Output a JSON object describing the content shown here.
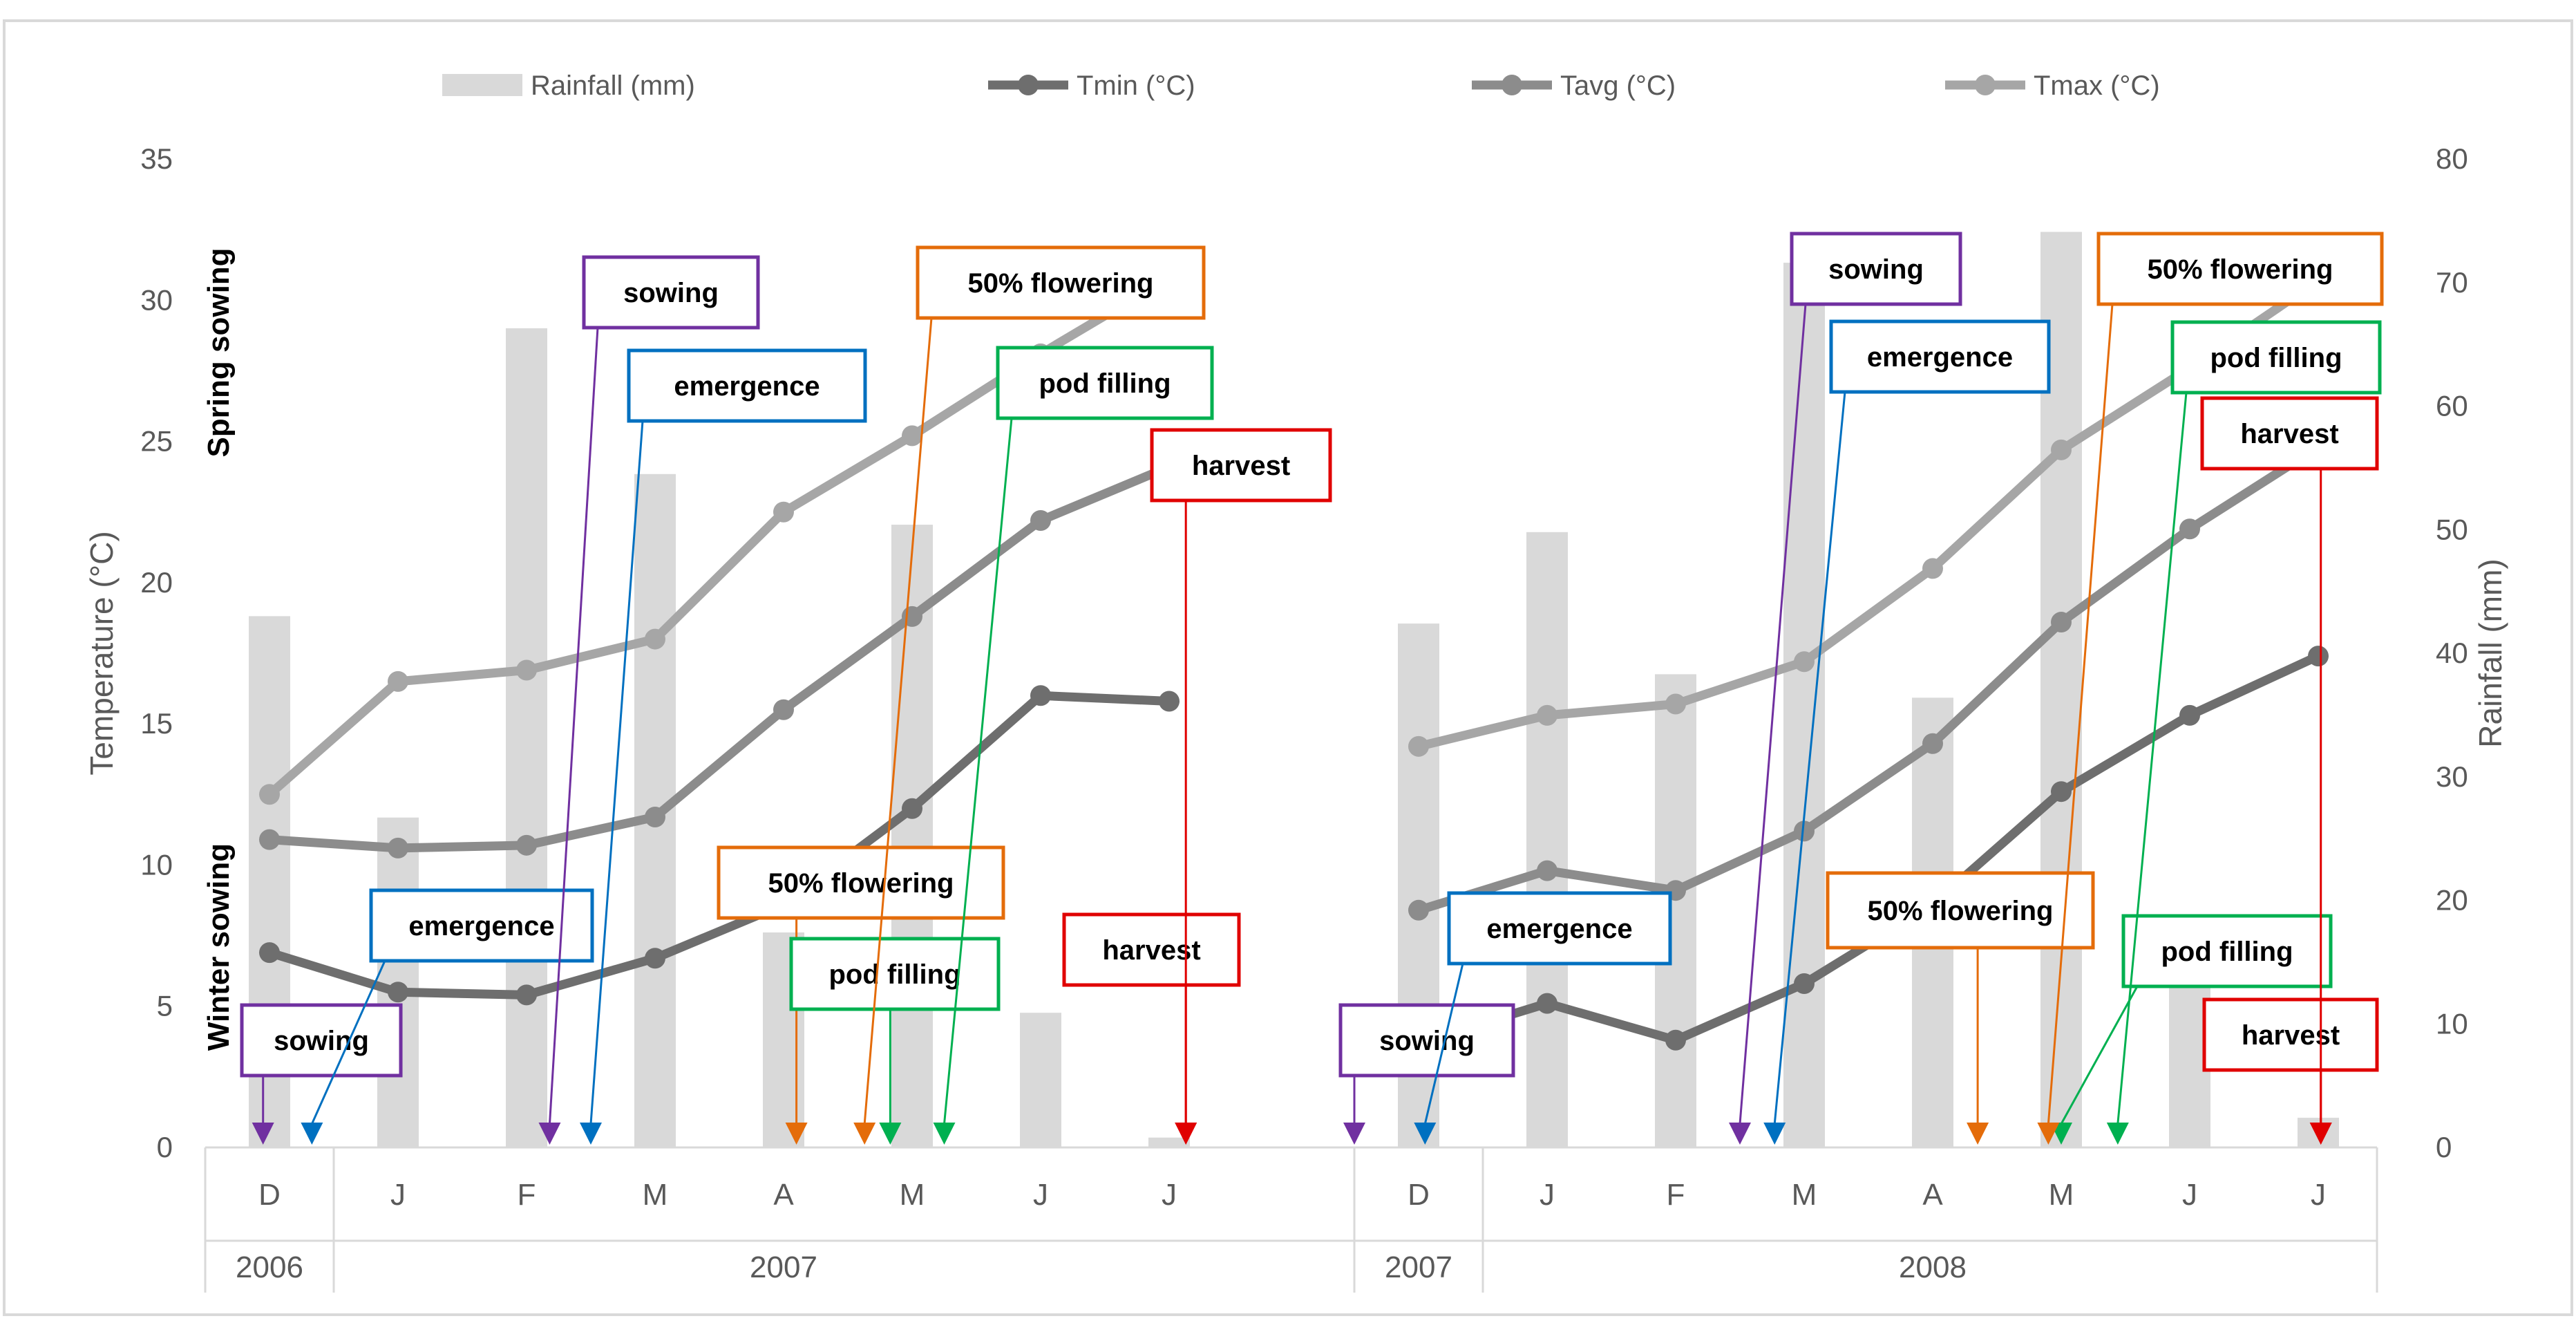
{
  "chart_data": {
    "type": "combo-bar-line",
    "legend": {
      "rainfall": "Rainfall (mm)",
      "tmin": "Tmin (°C)",
      "tavg": "Tavg (°C)",
      "tmax": "Tmax (°C)"
    },
    "colors": {
      "rainfall": "#d9d9d9",
      "tmin": "#6e6e6e",
      "tavg": "#8c8c8c",
      "tmax": "#a6a6a6",
      "sowing": "#7030a0",
      "emergence": "#0070c0",
      "flowering": "#e46c0a",
      "pod_filling": "#00b050",
      "harvest": "#e00000"
    },
    "y_left": {
      "label": "Temperature (°C)",
      "min": 0,
      "max": 35,
      "ticks": [
        0,
        5,
        10,
        15,
        20,
        25,
        30,
        35
      ]
    },
    "y_right": {
      "label": "Rainfall (mm)",
      "min": 0,
      "max": 80,
      "ticks": [
        0,
        10,
        20,
        30,
        40,
        50,
        60,
        70,
        80
      ]
    },
    "side_labels": {
      "top": "Spring sowing",
      "bottom": "Winter sowing"
    },
    "seasons": [
      {
        "months": [
          "D",
          "J",
          "F",
          "M",
          "A",
          "M",
          "J",
          "J"
        ],
        "years": [
          {
            "label": "2006",
            "span": 1
          },
          {
            "label": "2007",
            "span": 7
          }
        ],
        "rainfall": [
          43,
          26.7,
          66.3,
          54.5,
          17.4,
          50.4,
          10.9,
          0.8
        ],
        "tmin": [
          6.9,
          5.5,
          5.4,
          6.7,
          8.6,
          12.0,
          16.0,
          15.8
        ],
        "tavg": [
          10.9,
          10.6,
          10.7,
          11.7,
          15.5,
          18.8,
          22.2,
          24.1
        ],
        "tmax": [
          12.5,
          16.5,
          16.9,
          18.0,
          22.5,
          25.2,
          28.1,
          30.8
        ],
        "stages": [
          {
            "key": "sowing",
            "label": "sowing",
            "group": "winter",
            "arrow_pos": 0.45
          },
          {
            "key": "emergence",
            "label": "emergence",
            "group": "winter",
            "arrow_pos": 0.83
          },
          {
            "key": "flowering",
            "label": "50% flowering",
            "group": "winter",
            "arrow_pos": 4.6
          },
          {
            "key": "pod_filling",
            "label": "pod filling",
            "group": "winter",
            "arrow_pos": 5.33
          },
          {
            "key": "harvest",
            "label": "harvest",
            "group": "winter",
            "arrow_pos": 7.63
          },
          {
            "key": "sowing",
            "label": "sowing",
            "group": "spring",
            "arrow_pos": 2.68
          },
          {
            "key": "emergence",
            "label": "emergence",
            "group": "spring",
            "arrow_pos": 3.0
          },
          {
            "key": "flowering",
            "label": "50% flowering",
            "group": "spring",
            "arrow_pos": 5.13
          },
          {
            "key": "pod_filling",
            "label": "pod filling",
            "group": "spring",
            "arrow_pos": 5.75
          },
          {
            "key": "harvest",
            "label": "harvest",
            "group": "spring",
            "arrow_pos": 7.63
          }
        ]
      },
      {
        "months": [
          "D",
          "J",
          "F",
          "M",
          "A",
          "M",
          "J",
          "J"
        ],
        "years": [
          {
            "label": "2007",
            "span": 1
          },
          {
            "label": "2008",
            "span": 7
          }
        ],
        "rainfall": [
          42.4,
          49.8,
          38.3,
          71.6,
          36.4,
          74.1,
          14.3,
          2.4
        ],
        "tmin": [
          3.7,
          5.1,
          3.8,
          5.8,
          8.6,
          12.6,
          15.3,
          17.4
        ],
        "tavg": [
          8.4,
          9.8,
          9.1,
          11.2,
          14.3,
          18.6,
          21.9,
          24.8
        ],
        "tmax": [
          14.2,
          15.3,
          15.7,
          17.2,
          20.5,
          24.7,
          27.6,
          30.7
        ],
        "stages": [
          {
            "key": "sowing",
            "label": "sowing",
            "group": "winter",
            "arrow_pos": 0.0
          },
          {
            "key": "emergence",
            "label": "emergence",
            "group": "winter",
            "arrow_pos": 0.55
          },
          {
            "key": "flowering",
            "label": "50% flowering",
            "group": "winter",
            "arrow_pos": 4.85
          },
          {
            "key": "pod_filling",
            "label": "pod filling",
            "group": "winter",
            "arrow_pos": 5.5
          },
          {
            "key": "harvest",
            "label": "harvest",
            "group": "winter",
            "arrow_pos": 7.52
          },
          {
            "key": "sowing",
            "label": "sowing",
            "group": "spring",
            "arrow_pos": 3.0
          },
          {
            "key": "emergence",
            "label": "emergence",
            "group": "spring",
            "arrow_pos": 3.27
          },
          {
            "key": "flowering",
            "label": "50% flowering",
            "group": "spring",
            "arrow_pos": 5.4
          },
          {
            "key": "pod_filling",
            "label": "pod filling",
            "group": "spring",
            "arrow_pos": 5.94
          },
          {
            "key": "harvest",
            "label": "harvest",
            "group": "spring",
            "arrow_pos": 7.52
          }
        ]
      }
    ]
  }
}
